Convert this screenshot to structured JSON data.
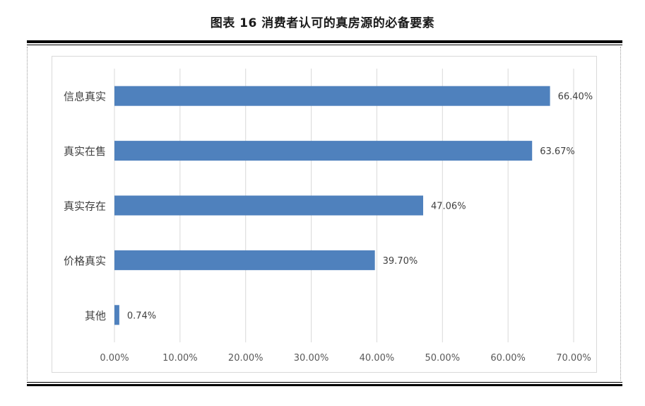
{
  "title": "图表 16  消费者认可的真房源的必备要素",
  "chart_data": {
    "type": "bar",
    "orientation": "horizontal",
    "title": "图表 16  消费者认可的真房源的必备要素",
    "categories": [
      "信息真实",
      "真实在售",
      "真实存在",
      "价格真实",
      "其他"
    ],
    "values": [
      66.4,
      63.67,
      47.06,
      39.7,
      0.74
    ],
    "value_labels": [
      "66.40%",
      "63.67%",
      "47.06%",
      "39.70%",
      "0.74%"
    ],
    "xlim": [
      0,
      70
    ],
    "xticks": [
      0,
      10,
      20,
      30,
      40,
      50,
      60,
      70
    ],
    "xtick_labels": [
      "0.00%",
      "10.00%",
      "20.00%",
      "30.00%",
      "40.00%",
      "50.00%",
      "60.00%",
      "70.00%"
    ],
    "xlabel": "",
    "ylabel": "",
    "grid": "vertical",
    "legend": "none",
    "bar_color": "#4f81bd",
    "grid_color": "#d9d9d9"
  }
}
